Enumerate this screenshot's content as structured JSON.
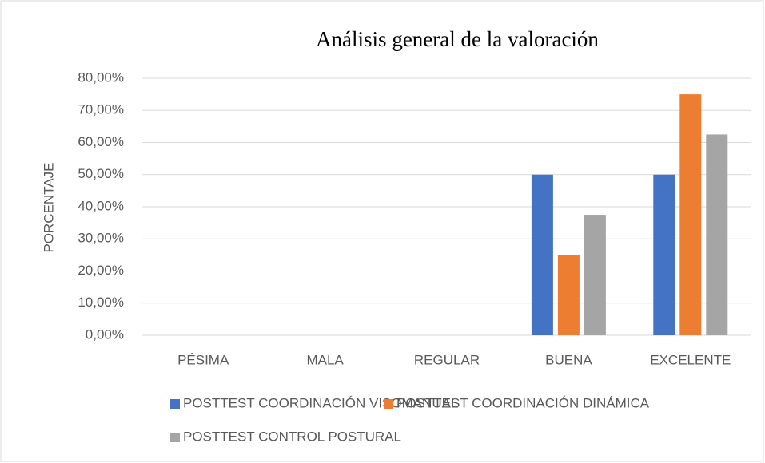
{
  "chart_data": {
    "type": "bar",
    "title": "Análisis general de la valoración",
    "y_axis_label": "PORCENTAJE",
    "categories": [
      "PÉSIMA",
      "MALA",
      "REGULAR",
      "BUENA",
      "EXCELENTE"
    ],
    "series": [
      {
        "name": "POSTTEST COORDINACIÓN VISOMANUAL",
        "color": "#4472c4",
        "values": [
          0,
          0,
          0,
          50,
          50
        ]
      },
      {
        "name": "POSTTEST COORDINACIÓN DINÁMICA",
        "color": "#ed7d31",
        "values": [
          0,
          0,
          0,
          25,
          75
        ]
      },
      {
        "name": "POSTTEST CONTROL POSTURAL",
        "color": "#a5a5a5",
        "values": [
          0,
          0,
          0,
          37.5,
          62.5
        ]
      }
    ],
    "ylim": [
      0,
      80
    ],
    "yticks": [
      {
        "value": 0,
        "label": "0,00%"
      },
      {
        "value": 10,
        "label": "10,00%"
      },
      {
        "value": 20,
        "label": "20,00%"
      },
      {
        "value": 30,
        "label": "30,00%"
      },
      {
        "value": 40,
        "label": "40,00%"
      },
      {
        "value": 50,
        "label": "50,00%"
      },
      {
        "value": 60,
        "label": "60,00%"
      },
      {
        "value": 70,
        "label": "70,00%"
      },
      {
        "value": 80,
        "label": "80,00%"
      }
    ],
    "grid": true,
    "legend": "bottom"
  }
}
